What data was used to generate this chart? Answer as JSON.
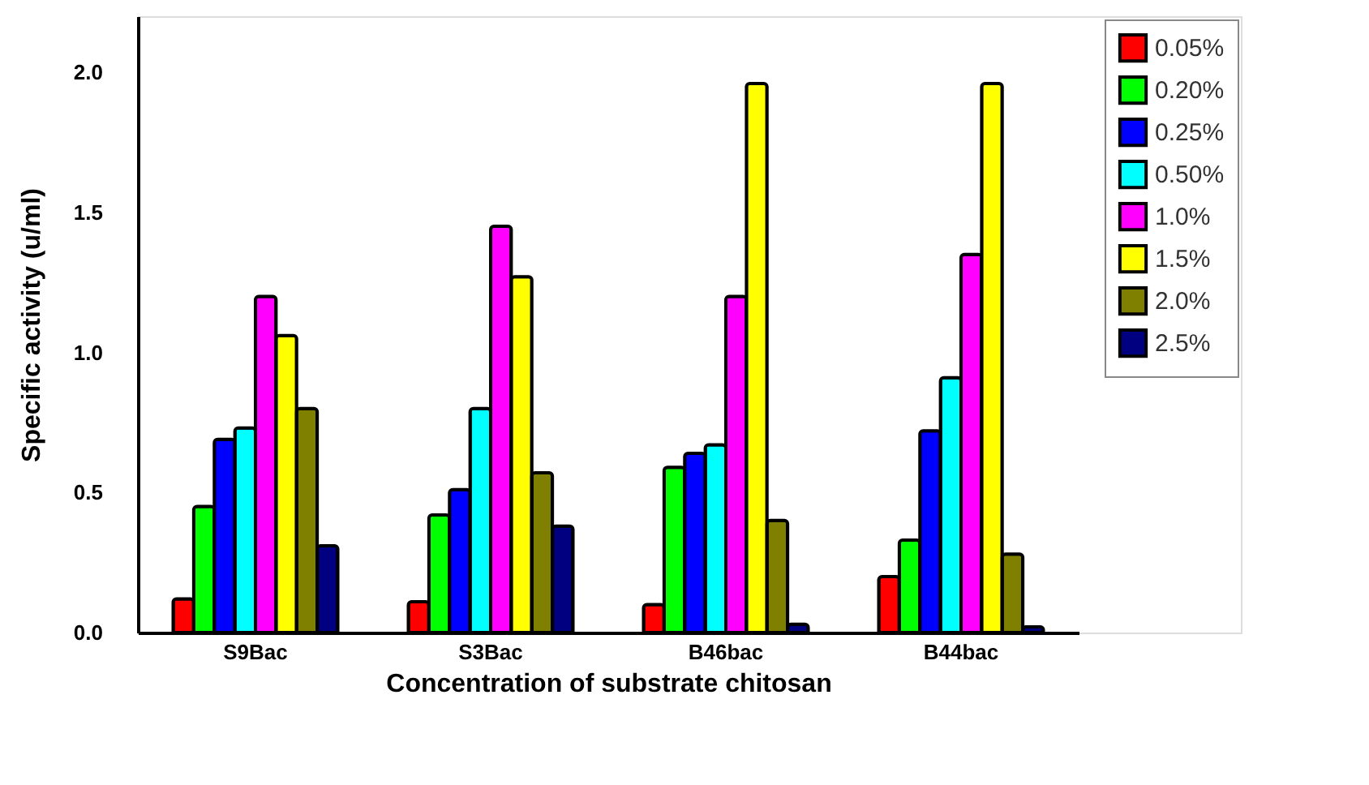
{
  "chart_data": {
    "type": "bar",
    "xlabel": "Concentration of substrate chitosan",
    "ylabel": "Specific activity (u/ml)",
    "categories": [
      "S9Bac",
      "S3Bac",
      "B46bac",
      "B44bac"
    ],
    "ylim": [
      0,
      2.2
    ],
    "yticks": [
      {
        "value": 0,
        "label": "0.0"
      },
      0.5,
      {
        "value": 1,
        "label": "1.0"
      },
      1.5,
      {
        "value": 2,
        "label": "2.0"
      }
    ],
    "grid": false,
    "legend": "top right",
    "series": [
      {
        "name": "0.05%",
        "color": "#ff0000",
        "values": [
          0.12,
          0.11,
          0.1,
          0.2
        ]
      },
      {
        "name": "0.20%",
        "color": "#00ff00",
        "values": [
          0.45,
          0.42,
          0.59,
          0.33
        ]
      },
      {
        "name": "0.25%",
        "color": "#0000ff",
        "values": [
          0.69,
          0.51,
          0.64,
          0.72
        ]
      },
      {
        "name": "0.50%",
        "color": "#00ffff",
        "values": [
          0.73,
          0.8,
          0.67,
          0.91
        ]
      },
      {
        "name": "1.0%",
        "color": "#ff00ff",
        "values": [
          1.2,
          1.45,
          1.2,
          1.35
        ]
      },
      {
        "name": "1.5%",
        "color": "#ffff00",
        "values": [
          1.06,
          1.27,
          1.96,
          1.96
        ]
      },
      {
        "name": "2.0%",
        "color": "#808000",
        "values": [
          0.8,
          0.57,
          0.4,
          0.28
        ]
      },
      {
        "name": "2.5%",
        "color": "#000080",
        "values": [
          0.31,
          0.38,
          0.03,
          0.02
        ]
      }
    ]
  }
}
